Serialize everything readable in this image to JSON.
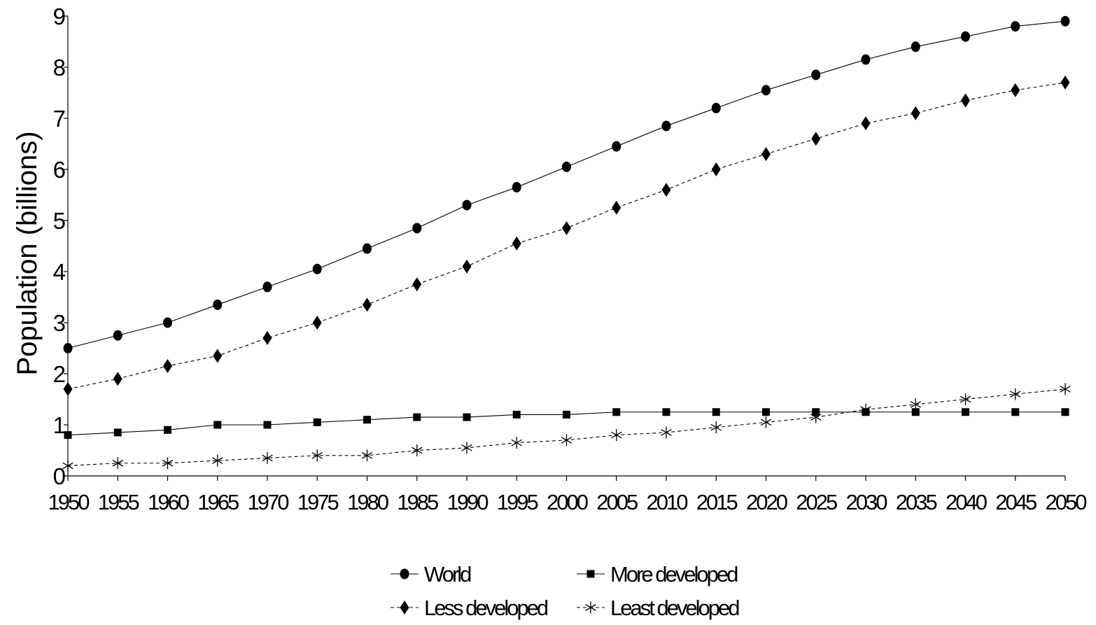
{
  "chart_data": {
    "type": "line",
    "ylabel": "Population (billions)",
    "xlabel": "",
    "ylim": [
      0,
      9
    ],
    "yticks": [
      "0",
      "1",
      "2",
      "3",
      "4",
      "5",
      "6",
      "7",
      "8",
      "9"
    ],
    "categories": [
      "1950",
      "1955",
      "1960",
      "1965",
      "1970",
      "1975",
      "1980",
      "1985",
      "1990",
      "1995",
      "2000",
      "2005",
      "2010",
      "2015",
      "2020",
      "2025",
      "2030",
      "2035",
      "2040",
      "2045",
      "2050"
    ],
    "grid": false,
    "legend_position": "bottom",
    "series": [
      {
        "name": "World",
        "marker": "circle",
        "line_style": "solid",
        "values": [
          2.5,
          2.75,
          3.0,
          3.35,
          3.7,
          4.05,
          4.45,
          4.85,
          5.3,
          5.65,
          6.05,
          6.45,
          6.85,
          7.2,
          7.55,
          7.85,
          8.15,
          8.4,
          8.6,
          8.8,
          8.9
        ]
      },
      {
        "name": "More developed",
        "marker": "square",
        "line_style": "solid",
        "values": [
          0.8,
          0.85,
          0.9,
          1.0,
          1.0,
          1.05,
          1.1,
          1.15,
          1.15,
          1.2,
          1.2,
          1.25,
          1.25,
          1.25,
          1.25,
          1.25,
          1.25,
          1.25,
          1.25,
          1.25,
          1.25
        ]
      },
      {
        "name": "Less developed",
        "marker": "diamond",
        "line_style": "dashed",
        "values": [
          1.7,
          1.9,
          2.15,
          2.35,
          2.7,
          3.0,
          3.35,
          3.75,
          4.1,
          4.55,
          4.85,
          5.25,
          5.6,
          6.0,
          6.3,
          6.6,
          6.9,
          7.1,
          7.35,
          7.55,
          7.7
        ]
      },
      {
        "name": "Least developed",
        "marker": "asterisk",
        "line_style": "dashed",
        "values": [
          0.2,
          0.25,
          0.25,
          0.3,
          0.35,
          0.4,
          0.4,
          0.5,
          0.55,
          0.65,
          0.7,
          0.8,
          0.85,
          0.95,
          1.05,
          1.15,
          1.3,
          1.4,
          1.5,
          1.6,
          1.7
        ]
      }
    ]
  }
}
